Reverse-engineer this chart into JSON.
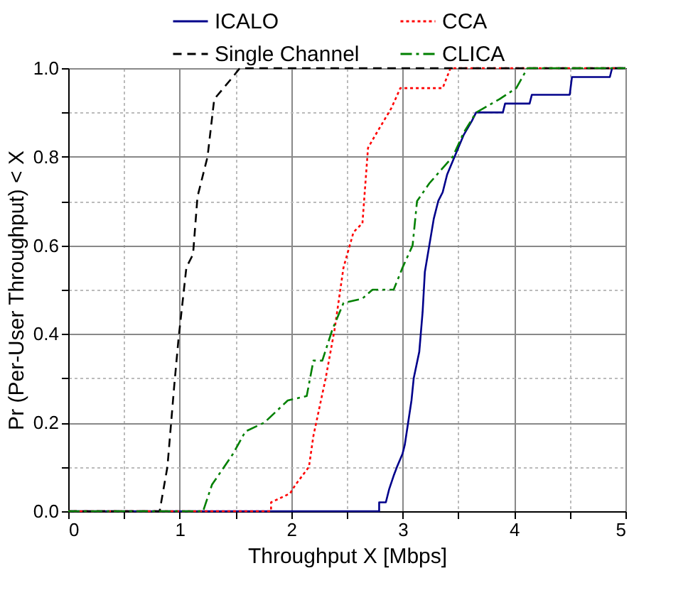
{
  "chart_data": {
    "type": "line",
    "xlabel": "Throughput X [Mbps]",
    "ylabel": "Pr (Per-User Throughput) < X",
    "xlim": [
      0,
      5
    ],
    "ylim": [
      0,
      1
    ],
    "xticks": [
      0,
      {
        "value": 0.5,
        "label": null
      },
      1,
      {
        "value": 1.5,
        "label": null
      },
      2,
      {
        "value": 2.5,
        "label": null
      },
      3,
      {
        "value": 3.5,
        "label": null
      },
      4,
      {
        "value": 4.5,
        "label": null
      },
      5
    ],
    "yticks": [
      {
        "value": 0,
        "label": "0.0"
      },
      {
        "value": 0.1,
        "label": null
      },
      {
        "value": 0.2,
        "label": "0.2"
      },
      {
        "value": 0.3,
        "label": null
      },
      {
        "value": 0.4,
        "label": "0.4"
      },
      {
        "value": 0.5,
        "label": null
      },
      {
        "value": 0.6,
        "label": "0.6"
      },
      {
        "value": 0.7,
        "label": null
      },
      {
        "value": 0.8,
        "label": "0.8"
      },
      {
        "value": 0.9,
        "label": null
      },
      {
        "value": 1,
        "label": "1.0"
      }
    ],
    "grid": true,
    "legend": "top",
    "marker": "none",
    "series": [
      {
        "name": "ICALO",
        "color": "#00008b",
        "line_style": "solid",
        "x": [
          0,
          2.79,
          2.79,
          2.85,
          2.88,
          2.92,
          2.95,
          3.0,
          3.02,
          3.05,
          3.08,
          3.1,
          3.15,
          3.18,
          3.2,
          3.24,
          3.28,
          3.32,
          3.36,
          3.4,
          3.45,
          3.5,
          3.55,
          3.62,
          3.66,
          3.9,
          3.92,
          4.14,
          4.16,
          4.5,
          4.52,
          4.86,
          4.88,
          5
        ],
        "values": [
          0,
          0,
          0.02,
          0.02,
          0.05,
          0.08,
          0.1,
          0.13,
          0.15,
          0.2,
          0.25,
          0.3,
          0.36,
          0.45,
          0.54,
          0.6,
          0.66,
          0.7,
          0.72,
          0.76,
          0.79,
          0.82,
          0.85,
          0.88,
          0.9,
          0.9,
          0.92,
          0.92,
          0.94,
          0.94,
          0.98,
          0.98,
          1,
          1
        ]
      },
      {
        "name": "CCA",
        "color": "#ff0000",
        "line_style": "dotted",
        "x": [
          0,
          1.82,
          1.82,
          1.99,
          2.04,
          2.16,
          2.2,
          2.31,
          2.39,
          2.47,
          2.56,
          2.64,
          2.69,
          2.77,
          2.9,
          2.98,
          3.36,
          3.43,
          5
        ],
        "values": [
          0,
          0,
          0.02,
          0.04,
          0.06,
          0.1,
          0.17,
          0.3,
          0.41,
          0.55,
          0.63,
          0.65,
          0.82,
          0.855,
          0.91,
          0.955,
          0.955,
          1,
          1
        ]
      },
      {
        "name": "Single Channel",
        "color": "#000000",
        "line_style": "dashed",
        "x": [
          0,
          0.82,
          0.89,
          0.95,
          0.99,
          1.06,
          1.12,
          1.16,
          1.25,
          1.31,
          1.46,
          1.54,
          5
        ],
        "values": [
          0,
          0,
          0.1,
          0.28,
          0.39,
          0.55,
          0.58,
          0.71,
          0.8,
          0.93,
          0.975,
          1,
          1
        ]
      },
      {
        "name": "CLICA",
        "color": "#008000",
        "line_style": "dashdot",
        "x": [
          0,
          1.21,
          1.29,
          1.48,
          1.59,
          1.76,
          1.97,
          2.14,
          2.2,
          2.28,
          2.37,
          2.47,
          2.64,
          2.73,
          2.92,
          3.0,
          3.09,
          3.13,
          3.24,
          3.45,
          3.55,
          3.66,
          3.87,
          4.02,
          4.12,
          5
        ],
        "values": [
          0,
          0,
          0.06,
          0.13,
          0.18,
          0.2,
          0.25,
          0.26,
          0.34,
          0.34,
          0.41,
          0.47,
          0.48,
          0.5,
          0.5,
          0.55,
          0.6,
          0.7,
          0.74,
          0.8,
          0.855,
          0.9,
          0.93,
          0.955,
          1,
          1
        ]
      }
    ]
  }
}
